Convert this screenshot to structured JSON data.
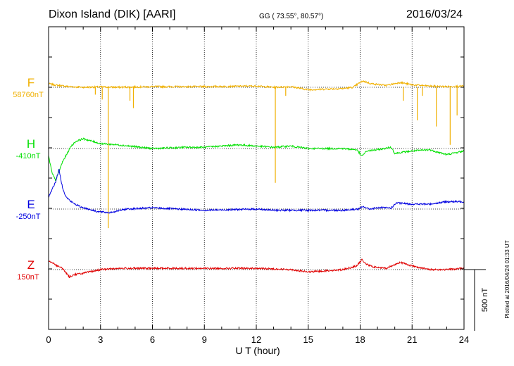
{
  "header": {
    "station": "Dixon Island (DIK)  [AARI]",
    "coords": "GG ( 73.55°,  80.57°)",
    "date": "2016/03/24"
  },
  "side_note": "Plotted at 2016/04/24 01:33 UT",
  "scale_label": "500 nT",
  "channels": [
    {
      "letter": "F",
      "baseline": "58760nT",
      "color": "#f0b000"
    },
    {
      "letter": "H",
      "baseline": "-410nT",
      "color": "#00e000"
    },
    {
      "letter": "E",
      "baseline": "-250nT",
      "color": "#0000e0"
    },
    {
      "letter": "Z",
      "baseline": "150nT",
      "color": "#e00000"
    }
  ],
  "chart_data": {
    "type": "line",
    "title": "Dixon Island (DIK)  [AARI]",
    "xlabel": "U T (hour)",
    "xlim": [
      0,
      24
    ],
    "xticks": [
      "0",
      "3",
      "6",
      "9",
      "12",
      "15",
      "18",
      "21",
      "24"
    ],
    "grid": "dotted vertical every 3 h, dotted baseline per channel",
    "scale_nT": 500,
    "series": [
      {
        "name": "F",
        "x": [
          0,
          0.3,
          0.6,
          0.9,
          1.2,
          2,
          3,
          4,
          6,
          9,
          12,
          13,
          14,
          15,
          17,
          17.6,
          18,
          18.2,
          18.6,
          19.5,
          20,
          20.3,
          21,
          22,
          23,
          24
        ],
        "y": [
          30,
          20,
          15,
          10,
          5,
          0,
          3,
          0,
          5,
          5,
          10,
          0,
          5,
          -20,
          -10,
          0,
          40,
          50,
          30,
          15,
          30,
          40,
          20,
          10,
          5,
          10
        ],
        "spikes": [
          {
            "x": 2.7,
            "y": -60
          },
          {
            "x": 3.1,
            "y": -100
          },
          {
            "x": 3.45,
            "y": -1150
          },
          {
            "x": 4.7,
            "y": -110
          },
          {
            "x": 4.9,
            "y": -170
          },
          {
            "x": 13.1,
            "y": -780
          },
          {
            "x": 13.7,
            "y": -70
          },
          {
            "x": 20.5,
            "y": -110
          },
          {
            "x": 21.3,
            "y": -270
          },
          {
            "x": 21.6,
            "y": -70
          },
          {
            "x": 22.4,
            "y": -320
          },
          {
            "x": 23.2,
            "y": -470
          },
          {
            "x": 23.6,
            "y": -230
          }
        ]
      },
      {
        "name": "H",
        "x": [
          0,
          0.2,
          0.4,
          0.6,
          0.8,
          1.0,
          1.3,
          1.6,
          2.0,
          2.5,
          3,
          4,
          6,
          8,
          9,
          11,
          12,
          13,
          14,
          15,
          16,
          17,
          17.8,
          18.1,
          18.4,
          19,
          19.8,
          20,
          21,
          22,
          23,
          24
        ],
        "y": [
          -60,
          -200,
          -260,
          -190,
          -110,
          -60,
          20,
          60,
          80,
          60,
          40,
          30,
          0,
          10,
          10,
          30,
          20,
          10,
          20,
          0,
          0,
          0,
          -10,
          -60,
          -20,
          -10,
          10,
          -40,
          -20,
          -10,
          -50,
          -20
        ]
      },
      {
        "name": "E",
        "x": [
          0,
          0.2,
          0.4,
          0.6,
          0.8,
          1.0,
          1.3,
          1.8,
          2.3,
          2.8,
          3.5,
          4.5,
          6,
          9,
          12,
          13,
          15,
          17,
          17.9,
          18.2,
          18.5,
          19,
          19.8,
          20.1,
          21,
          22,
          23,
          24
        ],
        "y": [
          100,
          160,
          220,
          320,
          180,
          100,
          60,
          20,
          0,
          -20,
          -30,
          0,
          10,
          -10,
          0,
          -10,
          -10,
          -10,
          0,
          20,
          0,
          10,
          10,
          50,
          40,
          40,
          60,
          60
        ]
      },
      {
        "name": "Z",
        "x": [
          0,
          0.2,
          0.5,
          0.8,
          1.2,
          1.5,
          2,
          3,
          4,
          6,
          9,
          12,
          14,
          15,
          16,
          17,
          17.8,
          18.1,
          18.4,
          18.8,
          19.5,
          20,
          20.3,
          21,
          22,
          23,
          24
        ],
        "y": [
          70,
          60,
          30,
          10,
          -60,
          -40,
          -30,
          0,
          10,
          10,
          10,
          10,
          0,
          -20,
          -10,
          0,
          30,
          80,
          40,
          20,
          10,
          40,
          60,
          30,
          0,
          0,
          10
        ]
      }
    ]
  }
}
